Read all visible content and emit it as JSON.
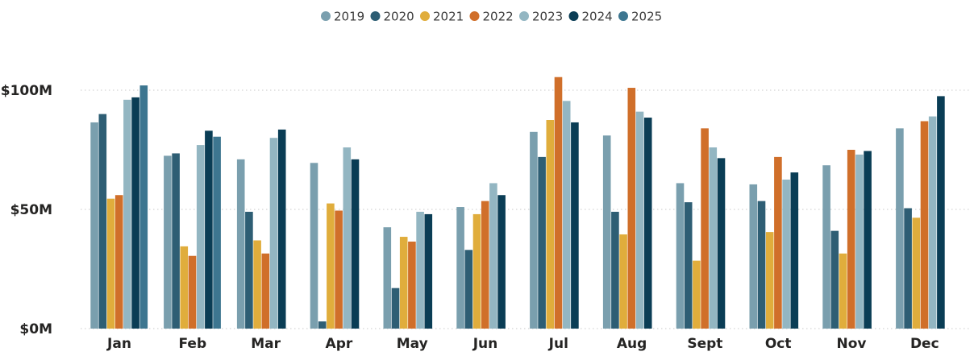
{
  "chart_data": {
    "type": "bar",
    "title": "",
    "xlabel": "",
    "ylabel": "",
    "ylim": [
      0,
      115
    ],
    "yticks": [
      {
        "value": 0,
        "label": "$0M"
      },
      {
        "value": 50,
        "label": "$50M"
      },
      {
        "value": 100,
        "label": "$100M"
      }
    ],
    "grid": true,
    "legend_position": "top-center",
    "categories": [
      "Jan",
      "Feb",
      "Mar",
      "Apr",
      "May",
      "Jun",
      "Jul",
      "Aug",
      "Sept",
      "Oct",
      "Nov",
      "Dec"
    ],
    "series": [
      {
        "name": "2019",
        "color": "#7a9fae",
        "values": [
          86.5,
          72.5,
          71,
          69.5,
          42.5,
          51,
          82.5,
          81,
          61,
          60.5,
          68.5,
          84
        ]
      },
      {
        "name": "2020",
        "color": "#2e5e74",
        "values": [
          90,
          73.5,
          49,
          3,
          17,
          33,
          72,
          49,
          53,
          53.5,
          41,
          50.5
        ]
      },
      {
        "name": "2021",
        "color": "#e0ad3c",
        "values": [
          54.5,
          34.5,
          37,
          52.5,
          38.5,
          48,
          87.5,
          39.5,
          28.5,
          40.5,
          31.5,
          46.5
        ]
      },
      {
        "name": "2022",
        "color": "#d06f2a",
        "values": [
          56,
          30.5,
          31.5,
          49.5,
          36.5,
          53.5,
          105.5,
          101,
          84,
          72,
          75,
          87
        ]
      },
      {
        "name": "2023",
        "color": "#93b6c2",
        "values": [
          96,
          77,
          80,
          76,
          49,
          61,
          95.5,
          91,
          76,
          62.5,
          73,
          89
        ]
      },
      {
        "name": "2024",
        "color": "#0a3d55",
        "values": [
          97,
          83,
          83.5,
          71,
          48,
          56,
          86.5,
          88.5,
          71.5,
          65.5,
          74.5,
          97.5
        ]
      },
      {
        "name": "2025",
        "color": "#3d7690",
        "values": [
          102,
          80.5,
          null,
          null,
          null,
          null,
          null,
          null,
          null,
          null,
          null,
          null
        ]
      }
    ]
  }
}
